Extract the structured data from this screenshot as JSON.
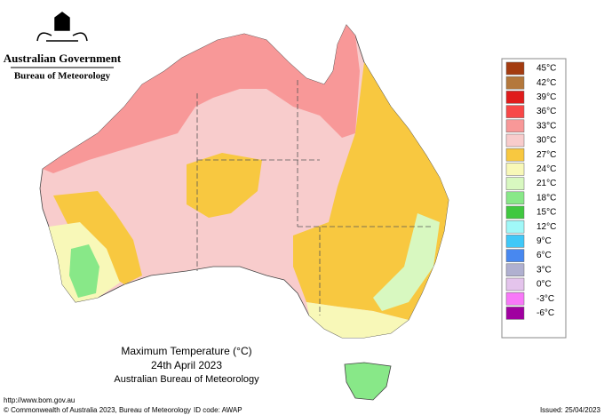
{
  "header": {
    "government": "Australian Government",
    "agency": "Bureau of Meteorology"
  },
  "legend": {
    "items": [
      {
        "label": "45°C",
        "color": "#a43c10"
      },
      {
        "label": "42°C",
        "color": "#b4783c"
      },
      {
        "label": "39°C",
        "color": "#e01c1c"
      },
      {
        "label": "36°C",
        "color": "#f84848"
      },
      {
        "label": "33°C",
        "color": "#f89898"
      },
      {
        "label": "30°C",
        "color": "#f8cccc"
      },
      {
        "label": "27°C",
        "color": "#f8c840"
      },
      {
        "label": "24°C",
        "color": "#f8f8b8"
      },
      {
        "label": "21°C",
        "color": "#d8f8c0"
      },
      {
        "label": "18°C",
        "color": "#88e888"
      },
      {
        "label": "15°C",
        "color": "#40c840"
      },
      {
        "label": "12°C",
        "color": "#a0f8f8"
      },
      {
        "label": "9°C",
        "color": "#40c8f8"
      },
      {
        "label": "6°C",
        "color": "#4888f0"
      },
      {
        "label": "3°C",
        "color": "#b0b0d0"
      },
      {
        "label": "0°C",
        "color": "#e4c4ec"
      },
      {
        "label": "-3°C",
        "color": "#f878f8"
      },
      {
        "label": "-6°C",
        "color": "#a000a0"
      }
    ]
  },
  "title": {
    "line1": "Maximum Temperature (°C)",
    "line2": "24th April 2023",
    "line3": "Australian Bureau of Meteorology"
  },
  "footer": {
    "url": "http://www.bom.gov.au",
    "copyright": "© Commonwealth of Australia 2023, Bureau of Meteorology",
    "id_code": "ID code: AWAP",
    "issued": "Issued: 25/04/2023"
  }
}
